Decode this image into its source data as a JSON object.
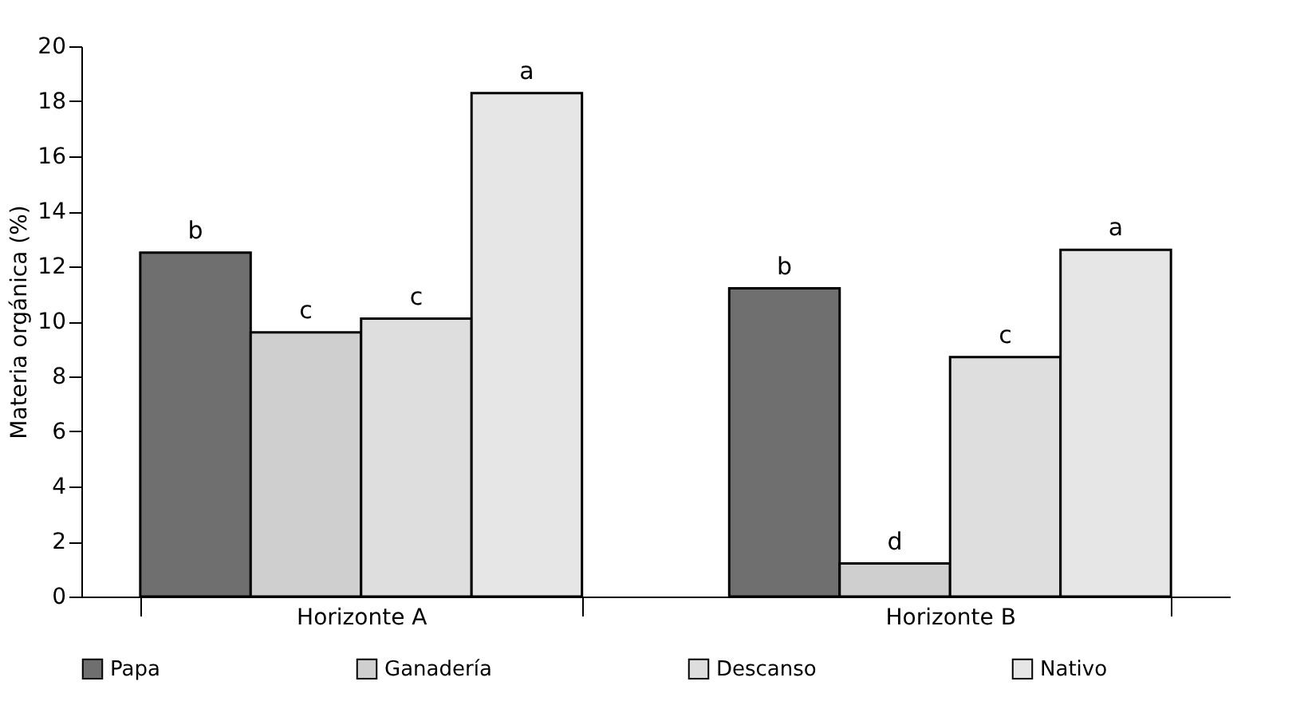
{
  "chart_data": {
    "type": "bar",
    "ylabel": "Materia orgánica (%)",
    "categories": [
      "Horizonte A",
      "Horizonte B"
    ],
    "series": [
      {
        "name": "Papa",
        "color": "#6f6f6f",
        "values": [
          12.5,
          11.2
        ],
        "value_labels": [
          "b",
          "b"
        ]
      },
      {
        "name": "Ganadería",
        "color": "#cfcfcf",
        "values": [
          9.6,
          1.2
        ],
        "value_labels": [
          "c",
          "d"
        ]
      },
      {
        "name": "Descanso",
        "color": "#dedede",
        "values": [
          10.1,
          8.7
        ],
        "value_labels": [
          "c",
          "c"
        ]
      },
      {
        "name": "Nativo",
        "color": "#e6e6e6",
        "values": [
          18.3,
          12.6
        ],
        "value_labels": [
          "a",
          "a"
        ]
      }
    ],
    "ylim": [
      0,
      20
    ],
    "yticks": [
      0,
      2,
      4,
      6,
      8,
      10,
      12,
      14,
      16,
      18,
      20
    ],
    "grid": false,
    "legend": "bottom"
  }
}
